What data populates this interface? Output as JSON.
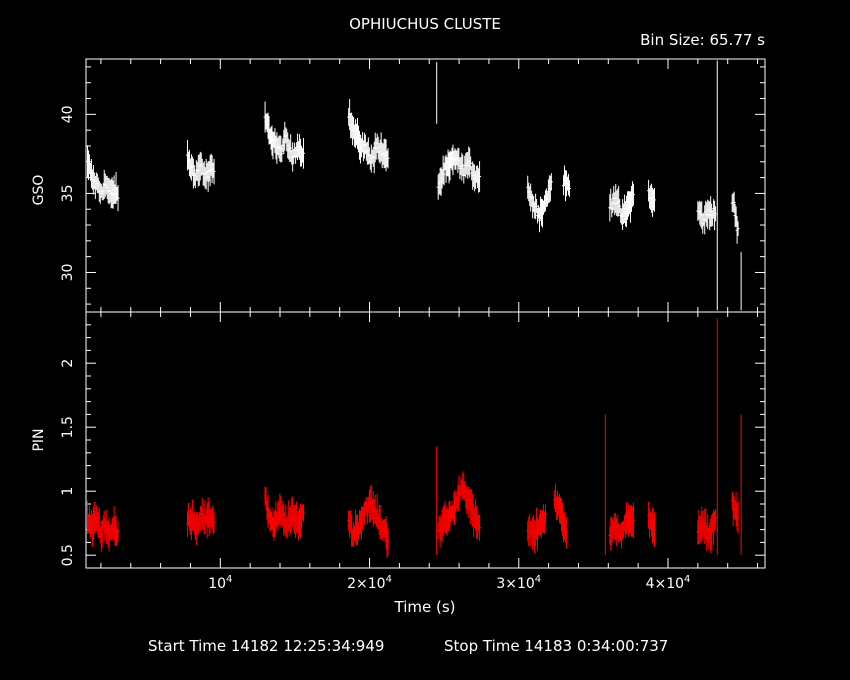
{
  "title": "OPHIUCHUS CLUSTE",
  "bin_size": "Bin Size: 65.77 s",
  "footer": {
    "start": "Start Time 14182 12:25:34:949",
    "stop": "Stop Time 14183  0:34:00:737"
  },
  "colors": {
    "background": "#000000",
    "gso": "#ffffff",
    "pin": "#ff0000",
    "axes": "#ffffff"
  },
  "chart_data": [
    {
      "type": "line",
      "ylabel": "GSO",
      "xlim": [
        1000,
        46500
      ],
      "ylim": [
        27.5,
        43.5
      ],
      "yticks": [
        30,
        35,
        40
      ],
      "color": "#ffffff",
      "segments": [
        {
          "x": [
            1100,
            1400,
            1700,
            2000,
            2300,
            2600,
            2900,
            3200
          ],
          "y": [
            37.0,
            36.0,
            35.5,
            35.0,
            35.6,
            34.9,
            35.3,
            34.6
          ]
        },
        {
          "x": [
            7800,
            8100,
            8400,
            8700,
            9000,
            9300,
            9600
          ],
          "y": [
            37.3,
            36.5,
            36.2,
            36.9,
            36.0,
            36.5,
            36.3
          ]
        },
        {
          "x": [
            13000,
            13300,
            13600,
            14000,
            14400,
            14800,
            15200,
            15600
          ],
          "y": [
            39.7,
            38.8,
            38.3,
            37.6,
            38.4,
            37.3,
            38.0,
            37.5
          ]
        },
        {
          "x": [
            18600,
            18900,
            19300,
            19700,
            20100,
            20500,
            20900,
            21300
          ],
          "y": [
            40.0,
            39.0,
            38.3,
            37.8,
            37.2,
            38.0,
            37.5,
            37.2
          ]
        },
        {
          "x": [
            24600,
            25000,
            25400,
            25800,
            26200,
            26600,
            27000,
            27400
          ],
          "y": [
            35.5,
            36.3,
            36.8,
            37.3,
            36.4,
            36.9,
            36.2,
            36.0
          ]
        },
        {
          "x": [
            30600,
            31000,
            31400,
            31800,
            32200
          ],
          "y": [
            35.5,
            34.1,
            33.8,
            34.4,
            35.7
          ]
        },
        {
          "x": [
            33000,
            33400
          ],
          "y": [
            35.8,
            35.3
          ]
        },
        {
          "x": [
            36100,
            36500,
            36900,
            37300,
            37700
          ],
          "y": [
            34.3,
            34.8,
            33.4,
            34.2,
            35.0
          ]
        },
        {
          "x": [
            38700,
            39100
          ],
          "y": [
            35.0,
            34.4
          ]
        },
        {
          "x": [
            42000,
            42400,
            42800,
            43200
          ],
          "y": [
            33.9,
            33.3,
            34.0,
            33.6
          ]
        },
        {
          "x": [
            44300,
            44700
          ],
          "y": [
            34.6,
            32.6
          ]
        }
      ]
    },
    {
      "type": "line",
      "ylabel": "PIN",
      "xlabel": "Time (s)",
      "xlim": [
        1000,
        46500
      ],
      "ylim": [
        0.4,
        2.4
      ],
      "yticks": [
        0.5,
        1,
        1.5,
        2
      ],
      "xticks": [
        10000,
        20000,
        30000,
        40000
      ],
      "xtick_labels": [
        {
          "prefix": "",
          "base": "10",
          "exp": "4"
        },
        {
          "prefix": "2×",
          "base": "10",
          "exp": "4"
        },
        {
          "prefix": "3×",
          "base": "10",
          "exp": "4"
        },
        {
          "prefix": "4×",
          "base": "10",
          "exp": "4"
        }
      ],
      "color": "#ff0000",
      "segments": [
        {
          "x": [
            1100,
            1400,
            1700,
            2000,
            2300,
            2600,
            2900,
            3200
          ],
          "y": [
            0.78,
            0.72,
            0.8,
            0.68,
            0.74,
            0.66,
            0.72,
            0.62
          ]
        },
        {
          "x": [
            7800,
            8100,
            8400,
            8700,
            9000,
            9300,
            9600
          ],
          "y": [
            0.76,
            0.8,
            0.72,
            0.82,
            0.74,
            0.8,
            0.78
          ]
        },
        {
          "x": [
            13000,
            13300,
            13600,
            14000,
            14400,
            14800,
            15200,
            15600
          ],
          "y": [
            0.95,
            0.78,
            0.72,
            0.84,
            0.74,
            0.8,
            0.76,
            0.82
          ]
        },
        {
          "x": [
            18600,
            18900,
            19300,
            19700,
            20100,
            20500,
            20900,
            21300
          ],
          "y": [
            0.78,
            0.66,
            0.74,
            0.84,
            0.9,
            0.8,
            0.7,
            0.64
          ]
        },
        {
          "x": [
            24600,
            25000,
            25400,
            25800,
            26200,
            26600,
            27000,
            27400
          ],
          "y": [
            0.7,
            0.76,
            0.8,
            0.9,
            1.05,
            0.95,
            0.8,
            0.7
          ]
        },
        {
          "x": [
            30600,
            31000,
            31400,
            31800
          ],
          "y": [
            0.7,
            0.66,
            0.74,
            0.8
          ]
        },
        {
          "x": [
            32400,
            32800,
            33200
          ],
          "y": [
            0.92,
            0.86,
            0.66
          ]
        },
        {
          "x": [
            36100,
            36500,
            36900,
            37300,
            37700
          ],
          "y": [
            0.64,
            0.72,
            0.68,
            0.78,
            0.74
          ]
        },
        {
          "x": [
            38700,
            39100
          ],
          "y": [
            0.8,
            0.72
          ]
        },
        {
          "x": [
            42000,
            42400,
            42800,
            43200
          ],
          "y": [
            0.7,
            0.72,
            0.66,
            0.8
          ]
        },
        {
          "x": [
            44300,
            44700
          ],
          "y": [
            0.9,
            0.78
          ]
        }
      ],
      "spikes": [
        {
          "x": 24500,
          "y": 1.35
        },
        {
          "x": 35800,
          "y": 1.6
        },
        {
          "x": 43300,
          "y": 2.35
        },
        {
          "x": 44900,
          "y": 1.6
        }
      ]
    }
  ]
}
